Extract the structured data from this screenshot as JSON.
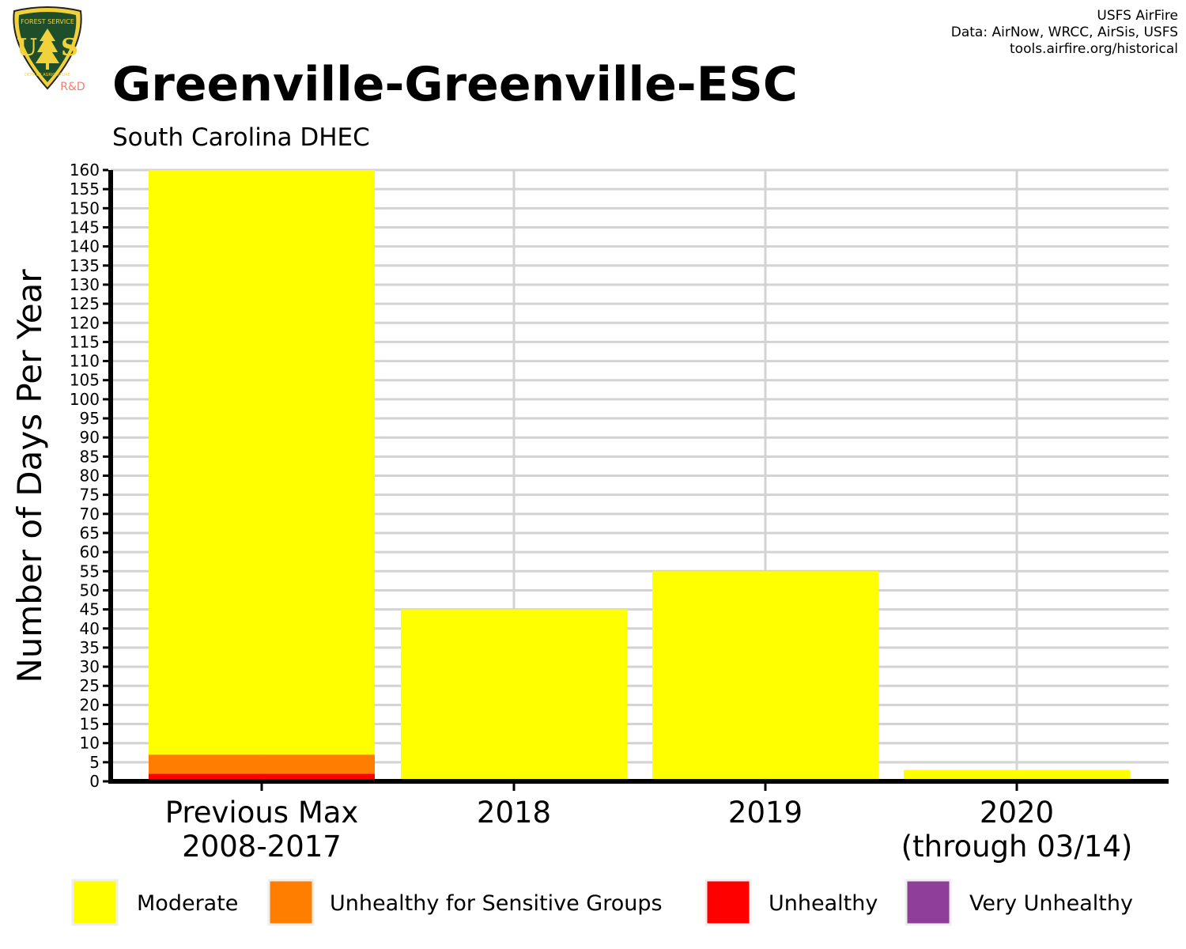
{
  "header": {
    "title": "Greenville-Greenville-ESC",
    "subtitle": "South Carolina DHEC",
    "credits": [
      "USFS AirFire",
      "Data: AirNow, WRCC, AirSis, USFS",
      "tools.airfire.org/historical"
    ]
  },
  "logo": {
    "icon": "usfs-shield-icon",
    "text": "FOREST SERVICE U S DEPARTMENT OF AGRICULTURE",
    "badge": "R&D"
  },
  "colors": {
    "Moderate": "#ffff00",
    "Unhealthy for Sensitive Groups": "#ff7e00",
    "Unhealthy": "#ff0000",
    "Very Unhealthy": "#8f3f97",
    "grid": "#d3d3d3",
    "axis": "#000000"
  },
  "chart_data": {
    "type": "bar",
    "stacked": true,
    "title": "Greenville-Greenville-ESC",
    "subtitle": "South Carolina DHEC",
    "xlabel": "",
    "ylabel": "Number of Days Per Year",
    "ylim": [
      0,
      160
    ],
    "yticks": [
      0,
      5,
      10,
      15,
      20,
      25,
      30,
      35,
      40,
      45,
      50,
      55,
      60,
      65,
      70,
      75,
      80,
      85,
      90,
      95,
      100,
      105,
      110,
      115,
      120,
      125,
      130,
      135,
      140,
      145,
      150,
      155,
      160
    ],
    "grid": true,
    "legend_position": "bottom",
    "categories": [
      [
        "Previous Max",
        "2008-2017"
      ],
      [
        "2018"
      ],
      [
        "2019"
      ],
      [
        "2020",
        "(through 03/14)"
      ]
    ],
    "series": [
      {
        "name": "Unhealthy",
        "values": [
          2,
          0,
          0,
          0
        ]
      },
      {
        "name": "Unhealthy for Sensitive Groups",
        "values": [
          5,
          0,
          0,
          0
        ]
      },
      {
        "name": "Moderate",
        "values": [
          153,
          45,
          55,
          3
        ]
      },
      {
        "name": "Very Unhealthy",
        "values": [
          0,
          0,
          0,
          0
        ]
      }
    ],
    "legend": [
      "Moderate",
      "Unhealthy for Sensitive Groups",
      "Unhealthy",
      "Very Unhealthy"
    ]
  }
}
